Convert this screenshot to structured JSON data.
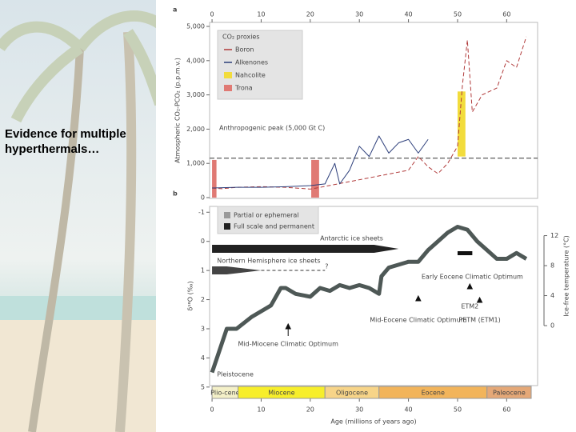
{
  "slide": {
    "text": "Evidence for multiple hyperthermals…"
  },
  "chart_data": [
    {
      "type": "line",
      "panel_label": "a",
      "ylabel": "Atmospheric CO₂-PCO₂ (p.p.m.v.)",
      "xlim": [
        -0.5,
        66.3
      ],
      "xticks": [
        0,
        10,
        20,
        30,
        40,
        50,
        60
      ],
      "ylim": [
        -23,
        5117
      ],
      "yticks": [
        0,
        {
          "value": 1000,
          "label": "1,000"
        },
        {
          "value": 2000,
          "label": "2,000"
        },
        {
          "value": 3000,
          "label": "3,000"
        },
        {
          "value": 4000,
          "label": "4,000"
        },
        {
          "value": 5000,
          "label": "5,000"
        }
      ],
      "legend_title": "CO₂ proxies",
      "series": [
        {
          "name": "Boron",
          "color": "#b03a3a",
          "x": [
            0,
            2,
            5,
            10,
            15,
            20,
            22,
            40,
            42,
            44,
            46,
            48,
            50,
            51,
            52,
            53,
            55,
            58,
            60,
            62,
            64
          ],
          "values": [
            280,
            260,
            300,
            320,
            300,
            250,
            300,
            800,
            1200,
            900,
            700,
            1000,
            1500,
            3300,
            4600,
            2500,
            3000,
            3200,
            4000,
            3800,
            4700
          ]
        },
        {
          "name": "Alkenones",
          "color": "#2c3e7a",
          "x": [
            0,
            5,
            10,
            15,
            20,
            23,
            25,
            26,
            28,
            30,
            32,
            34,
            36,
            38,
            40,
            42,
            44
          ],
          "values": [
            280,
            300,
            300,
            320,
            350,
            400,
            1000,
            400,
            800,
            1500,
            1200,
            1800,
            1300,
            1600,
            1700,
            1300,
            1700
          ]
        }
      ],
      "bars": [
        {
          "name": "Nahcolite",
          "color": "#f2dc3c",
          "ranges": [
            {
              "x": [
                50,
                51.6
              ],
              "y": [
                1200,
                3100
              ]
            }
          ]
        },
        {
          "name": "Trona",
          "color": "#e07a74",
          "ranges": [
            {
              "x": [
                0,
                0.9
              ],
              "y": [
                0,
                1100
              ]
            },
            {
              "x": [
                20.2,
                21.8
              ],
              "y": [
                0,
                1100
              ]
            }
          ]
        }
      ],
      "reference_line": {
        "value": 1150,
        "label": "Anthropogenic peak (5,000 Gt C)"
      }
    },
    {
      "type": "line",
      "panel_label": "b",
      "xlabel": "Age (millions of years ago)",
      "ylabel": "δ¹⁸O (‰)",
      "y2label": "Ice-free temperature (°C)",
      "xlim": [
        -0.5,
        66.3
      ],
      "xticks": [
        0,
        10,
        20,
        30,
        40,
        50,
        60
      ],
      "ylim": [
        4.95,
        -1.2
      ],
      "yticks": [
        -1,
        0,
        1,
        2,
        3,
        4,
        5
      ],
      "y2lim": [
        -8,
        15.9
      ],
      "y2ticks": [
        0,
        4,
        8,
        12
      ],
      "series": [
        {
          "name": "δ¹⁸O",
          "color": "#4e5856",
          "x": [
            0,
            1,
            2,
            3,
            5,
            8,
            12,
            14,
            15,
            17,
            20,
            22,
            24,
            26,
            28,
            30,
            32,
            34,
            34.5,
            36,
            40,
            42,
            44,
            46,
            48,
            50,
            52,
            54,
            56,
            58,
            60,
            62,
            64
          ],
          "values": [
            4.5,
            4,
            3.5,
            3,
            3,
            2.6,
            2.2,
            1.6,
            1.6,
            1.8,
            1.9,
            1.6,
            1.7,
            1.5,
            1.6,
            1.5,
            1.6,
            1.8,
            1.2,
            0.9,
            0.7,
            0.7,
            0.3,
            0,
            -0.3,
            -0.5,
            -0.4,
            0,
            0.3,
            0.6,
            0.6,
            0.4,
            0.6
          ]
        }
      ],
      "legend": [
        "Partial or ephemeral",
        "Full scale and permanent"
      ],
      "ice_labels": [
        "Antarctic ice sheets",
        "Northern Hemisphere ice sheets",
        "?"
      ],
      "annotations": [
        "Early Eocene Climatic Optimum",
        "Mid-Eocene Climatic Optimum",
        "Mid-Miocene Climatic Optimum",
        "ETM2",
        "PETM (ETM1)",
        "Pleistocene"
      ],
      "epochs": [
        {
          "name": "Plio-cene",
          "start": 0,
          "end": 5.3,
          "color": "#f4f0c8"
        },
        {
          "name": "Miocene",
          "start": 5.3,
          "end": 23,
          "color": "#f7ee2a"
        },
        {
          "name": "Oligocene",
          "start": 23,
          "end": 34,
          "color": "#f7d488"
        },
        {
          "name": "Eocene",
          "start": 34,
          "end": 56,
          "color": "#f2b45a"
        },
        {
          "name": "Paleocene",
          "start": 56,
          "end": 65,
          "color": "#e5a877"
        }
      ]
    }
  ]
}
